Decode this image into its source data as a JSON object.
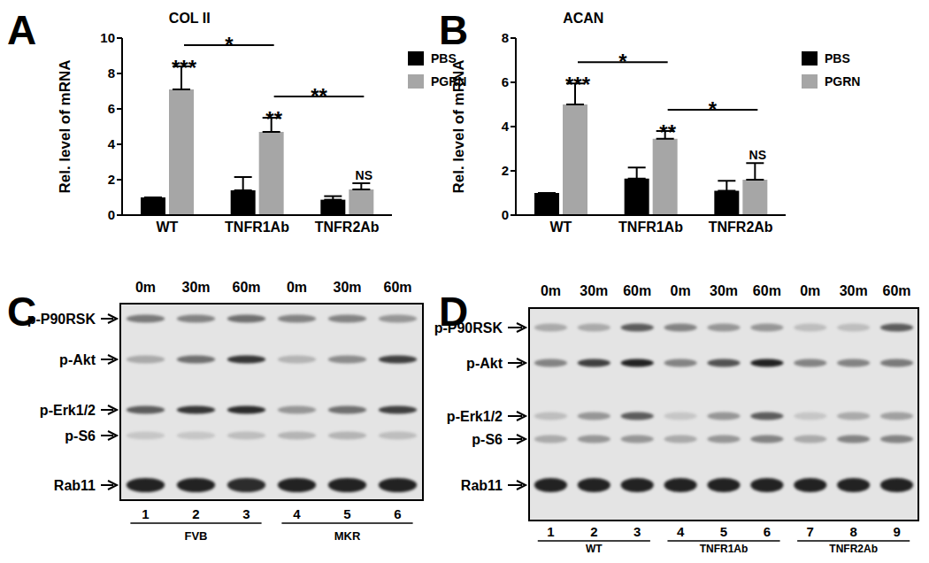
{
  "chart_data": [
    {
      "panel_label": "A",
      "type": "bar",
      "title": "COL II",
      "ylabel": "Rel. level of mRNA",
      "categories": [
        "WT",
        "TNFR1Ab",
        "TNFR2Ab"
      ],
      "series": [
        {
          "name": "PBS",
          "color": "#000000",
          "values": [
            1,
            1.4,
            0.87
          ],
          "errors": [
            0,
            0.75,
            0.2
          ]
        },
        {
          "name": "PGRN",
          "color": "#a6a6a6",
          "values": [
            7.1,
            4.7,
            1.45
          ],
          "errors": [
            1.3,
            0.8,
            0.35
          ]
        }
      ],
      "ylim": [
        0,
        10
      ],
      "yticks": [
        0,
        2,
        4,
        6,
        8,
        10
      ],
      "legend": "upper right",
      "annotations": [
        {
          "text": "***",
          "series": "PGRN",
          "category": "WT"
        },
        {
          "text": "**",
          "series": "PGRN",
          "category": "TNFR1Ab"
        },
        {
          "text": "NS",
          "series": "PGRN",
          "category": "TNFR2Ab"
        }
      ],
      "comparisons": [
        {
          "text": "*",
          "series": "PGRN",
          "from": "WT",
          "to": "TNFR1Ab"
        },
        {
          "text": "**",
          "series": "PGRN",
          "from": "TNFR1Ab",
          "to": "TNFR2Ab"
        }
      ]
    },
    {
      "panel_label": "B",
      "type": "bar",
      "title": "ACAN",
      "ylabel": "Rel. level of mRNA",
      "categories": [
        "WT",
        "TNFR1Ab",
        "TNFR2Ab"
      ],
      "series": [
        {
          "name": "PBS",
          "color": "#000000",
          "values": [
            1,
            1.65,
            1.1
          ],
          "errors": [
            0,
            0.5,
            0.45
          ]
        },
        {
          "name": "PGRN",
          "color": "#a6a6a6",
          "values": [
            5,
            3.45,
            1.6
          ],
          "errors": [
            0.95,
            0.35,
            0.75
          ]
        }
      ],
      "ylim": [
        0,
        8
      ],
      "yticks": [
        0,
        2,
        4,
        6,
        8
      ],
      "legend": "upper right",
      "annotations": [
        {
          "text": "***",
          "series": "PGRN",
          "category": "WT"
        },
        {
          "text": "**",
          "series": "PGRN",
          "category": "TNFR1Ab"
        },
        {
          "text": "NS",
          "series": "PGRN",
          "category": "TNFR2Ab"
        }
      ],
      "comparisons": [
        {
          "text": "*",
          "series": "PGRN",
          "from": "WT",
          "to": "TNFR1Ab"
        },
        {
          "text": "*",
          "series": "PGRN",
          "from": "TNFR1Ab",
          "to": "TNFR2Ab"
        }
      ]
    }
  ],
  "blots": [
    {
      "panel_label": "C",
      "time_labels": [
        "0m",
        "30m",
        "60m",
        "0m",
        "30m",
        "60m"
      ],
      "lane_numbers": [
        1,
        2,
        3,
        4,
        5,
        6
      ],
      "groups": [
        {
          "label": "FVB",
          "lanes": [
            1,
            3
          ]
        },
        {
          "label": "MKR",
          "lanes": [
            4,
            6
          ]
        }
      ],
      "bands": [
        {
          "label": "p-P90RSK",
          "intensity": [
            0.55,
            0.5,
            0.6,
            0.5,
            0.5,
            0.4
          ]
        },
        {
          "label": "p-Akt",
          "intensity": [
            0.3,
            0.6,
            0.9,
            0.25,
            0.45,
            0.85
          ]
        },
        {
          "label": "p-Erk1/2",
          "intensity": [
            0.7,
            0.9,
            0.95,
            0.4,
            0.6,
            0.85
          ]
        },
        {
          "label": "p-S6",
          "intensity": [
            0.15,
            0.15,
            0.2,
            0.25,
            0.25,
            0.2
          ]
        },
        {
          "label": "Rab11",
          "intensity": [
            1,
            1,
            0.95,
            1,
            1,
            1
          ]
        }
      ]
    },
    {
      "panel_label": "D",
      "time_labels": [
        "0m",
        "30m",
        "60m",
        "0m",
        "30m",
        "60m",
        "0m",
        "30m",
        "60m"
      ],
      "lane_numbers": [
        1,
        2,
        3,
        4,
        5,
        6,
        7,
        8,
        9
      ],
      "groups": [
        {
          "label": "WT",
          "lanes": [
            1,
            3
          ]
        },
        {
          "label": "TNFR1Ab",
          "lanes": [
            4,
            6
          ]
        },
        {
          "label": "TNFR2Ab",
          "lanes": [
            7,
            9
          ]
        }
      ],
      "bands": [
        {
          "label": "p-P90RSK",
          "intensity": [
            0.3,
            0.3,
            0.7,
            0.5,
            0.4,
            0.4,
            0.2,
            0.2,
            0.7
          ]
        },
        {
          "label": "p-Akt",
          "intensity": [
            0.5,
            0.85,
            1,
            0.5,
            0.75,
            1,
            0.5,
            0.5,
            0.55
          ]
        },
        {
          "label": "p-Erk1/2",
          "intensity": [
            0.2,
            0.4,
            0.7,
            0.15,
            0.4,
            0.7,
            0.15,
            0.3,
            0.35
          ]
        },
        {
          "label": "p-S6",
          "intensity": [
            0.3,
            0.4,
            0.4,
            0.3,
            0.4,
            0.5,
            0.3,
            0.5,
            0.5
          ]
        },
        {
          "label": "Rab11",
          "intensity": [
            1,
            1,
            1,
            1,
            1,
            1,
            1,
            1,
            1
          ]
        }
      ]
    }
  ]
}
